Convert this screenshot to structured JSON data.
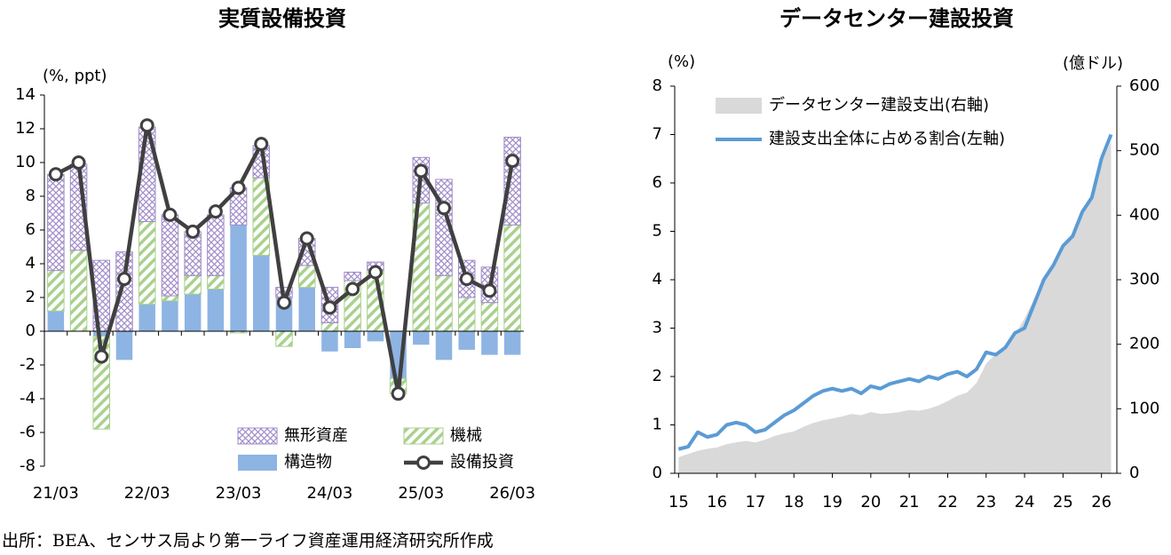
{
  "chart_data": [
    {
      "type": "bar",
      "title": "実質設備投資",
      "y_label": "(%, ppt)",
      "stacked": true,
      "categories": [
        "21/03",
        null,
        null,
        null,
        "22/03",
        null,
        null,
        null,
        "23/03",
        null,
        null,
        null,
        "24/03",
        null,
        null,
        null,
        "25/03",
        null,
        null,
        null,
        "26/03"
      ],
      "ylim": [
        -8,
        14
      ],
      "yticks": [
        -8,
        -6,
        -4,
        -2,
        0,
        2,
        4,
        6,
        8,
        10,
        12,
        14
      ],
      "series": [
        {
          "name": "構造物",
          "type": "bar",
          "pattern": "solid",
          "color": "#8eb4e3",
          "values": [
            1.2,
            0,
            -0.3,
            -1.7,
            1.6,
            1.8,
            2.2,
            2.5,
            6.3,
            4.5,
            2.0,
            2.6,
            -1.2,
            -1.0,
            -0.6,
            -2.8,
            -0.8,
            -1.7,
            -1.1,
            -1.4,
            -1.4
          ]
        },
        {
          "name": "機械",
          "type": "bar",
          "pattern": "diagonal",
          "color": "#a9d18e",
          "values": [
            2.4,
            4.8,
            -5.5,
            0,
            4.9,
            0.3,
            1.1,
            0.8,
            -0.1,
            4.6,
            -0.9,
            1.3,
            0.5,
            3.0,
            3.6,
            -0.9,
            7.6,
            3.3,
            2.0,
            1.7,
            6.3
          ]
        },
        {
          "name": "無形資産",
          "type": "bar",
          "pattern": "crosshatch",
          "color": "#a08cc8",
          "values": [
            5.7,
            5.1,
            4.2,
            4.7,
            5.6,
            4.8,
            2.6,
            3.6,
            2.2,
            1.9,
            0.6,
            1.6,
            2.1,
            0.5,
            0.5,
            0,
            2.7,
            5.7,
            2.2,
            2.1,
            5.2
          ]
        },
        {
          "name": "設備投資",
          "type": "line",
          "color": "#404040",
          "values": [
            9.3,
            10.0,
            -1.5,
            3.1,
            12.2,
            6.9,
            5.9,
            7.1,
            8.5,
            11.1,
            1.7,
            5.5,
            1.4,
            2.5,
            3.5,
            -3.7,
            9.5,
            7.3,
            3.1,
            2.4,
            10.1
          ]
        }
      ]
    },
    {
      "type": "line",
      "title": "データセンター建設投資",
      "y_label": "(%)",
      "y2_label": "(億ドル)",
      "x": [
        15,
        15.25,
        15.5,
        15.75,
        16,
        16.25,
        16.5,
        16.75,
        17,
        17.25,
        17.5,
        17.75,
        18,
        18.25,
        18.5,
        18.75,
        19,
        19.25,
        19.5,
        19.75,
        20,
        20.25,
        20.5,
        20.75,
        21,
        21.25,
        21.5,
        21.75,
        22,
        22.25,
        22.5,
        22.75,
        23,
        23.25,
        23.5,
        23.75,
        24,
        24.25,
        24.5,
        24.75,
        25,
        25.25,
        25.5,
        25.75,
        26,
        26.25
      ],
      "xlim": [
        14.9,
        26.4
      ],
      "xticks": [
        15,
        16,
        17,
        18,
        19,
        20,
        21,
        22,
        23,
        24,
        25,
        26
      ],
      "ylim": [
        0,
        8
      ],
      "yticks": [
        0,
        1,
        2,
        3,
        4,
        5,
        6,
        7,
        8
      ],
      "y2lim": [
        0,
        600
      ],
      "y2ticks": [
        0,
        100,
        200,
        300,
        400,
        500,
        600
      ],
      "series": [
        {
          "name": "データセンター建設支出(右軸)",
          "type": "area",
          "axis": "y2",
          "color": "#d9d9d9",
          "values": [
            25,
            30,
            35,
            38,
            40,
            45,
            48,
            50,
            48,
            52,
            58,
            62,
            65,
            72,
            78,
            82,
            85,
            88,
            92,
            90,
            95,
            92,
            93,
            95,
            98,
            97,
            100,
            105,
            112,
            120,
            125,
            140,
            170,
            185,
            195,
            215,
            240,
            270,
            300,
            320,
            350,
            365,
            400,
            425,
            480,
            515
          ]
        },
        {
          "name": "建設支出全体に占める割合(左軸)",
          "type": "line",
          "color": "#5b9bd5",
          "values": [
            0.5,
            0.55,
            0.85,
            0.75,
            0.8,
            1.0,
            1.05,
            1.0,
            0.85,
            0.9,
            1.05,
            1.2,
            1.3,
            1.45,
            1.6,
            1.7,
            1.75,
            1.7,
            1.75,
            1.65,
            1.8,
            1.75,
            1.85,
            1.9,
            1.95,
            1.9,
            2.0,
            1.95,
            2.05,
            2.1,
            2.0,
            2.15,
            2.5,
            2.45,
            2.6,
            2.9,
            3.0,
            3.5,
            4.0,
            4.3,
            4.7,
            4.9,
            5.4,
            5.7,
            6.5,
            7.0
          ]
        }
      ]
    }
  ],
  "source": "出所：BEA、センサス局より第一ライフ資産運用経済研究所作成"
}
